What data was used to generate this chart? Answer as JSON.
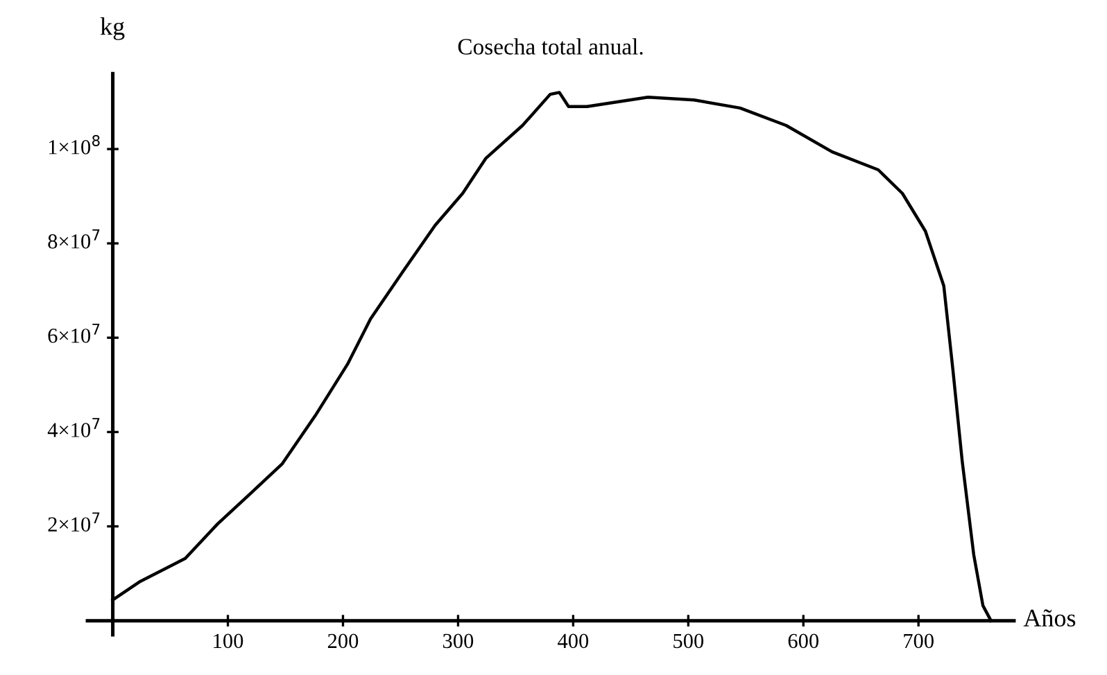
{
  "chart_data": {
    "type": "line",
    "title": "Cosecha total anual.",
    "xlabel": "Años",
    "ylabel": "kg",
    "x": [
      0,
      23,
      63,
      91,
      119,
      147,
      176,
      204,
      224,
      252,
      280,
      304,
      324,
      356,
      380,
      388,
      396,
      412,
      465,
      505,
      545,
      585,
      625,
      665,
      686,
      706,
      722,
      730,
      738,
      748,
      756,
      763
    ],
    "series": [
      {
        "color": "#000000",
        "values": [
          4400000.0,
          8200000.0,
          13200000.0,
          20500000.0,
          26800000.0,
          33200000.0,
          43500000.0,
          54400000.0,
          64000000.0,
          74000000.0,
          83800000.0,
          90600000.0,
          98000000.0,
          105000000.0,
          111600000.0,
          112000000.0,
          109000000.0,
          109000000.0,
          111000000.0,
          110400000.0,
          108700000.0,
          105000000.0,
          99400000.0,
          95600000.0,
          90600000.0,
          82600000.0,
          71000000.0,
          53000000.0,
          33800000.0,
          14000000.0,
          3200000.0,
          0
        ]
      }
    ],
    "xlim": [
      -22,
      783
    ],
    "ylim": [
      -3000000.0,
      116000000.0
    ],
    "xticks": [
      100,
      200,
      300,
      400,
      500,
      600,
      700
    ],
    "yticks": [
      {
        "value": 20000000.0,
        "label": "2×10$^{7}$"
      },
      {
        "value": 40000000.0,
        "label": "4×10$^{7}$"
      },
      {
        "value": 60000000.0,
        "label": "6×10$^{7}$"
      },
      {
        "value": 80000000.0,
        "label": "8×10$^{7}$"
      },
      {
        "value": 100000000.0,
        "label": "1×10$^{8}$"
      }
    ],
    "grid": false,
    "marker": "none",
    "line_style": "solid"
  }
}
